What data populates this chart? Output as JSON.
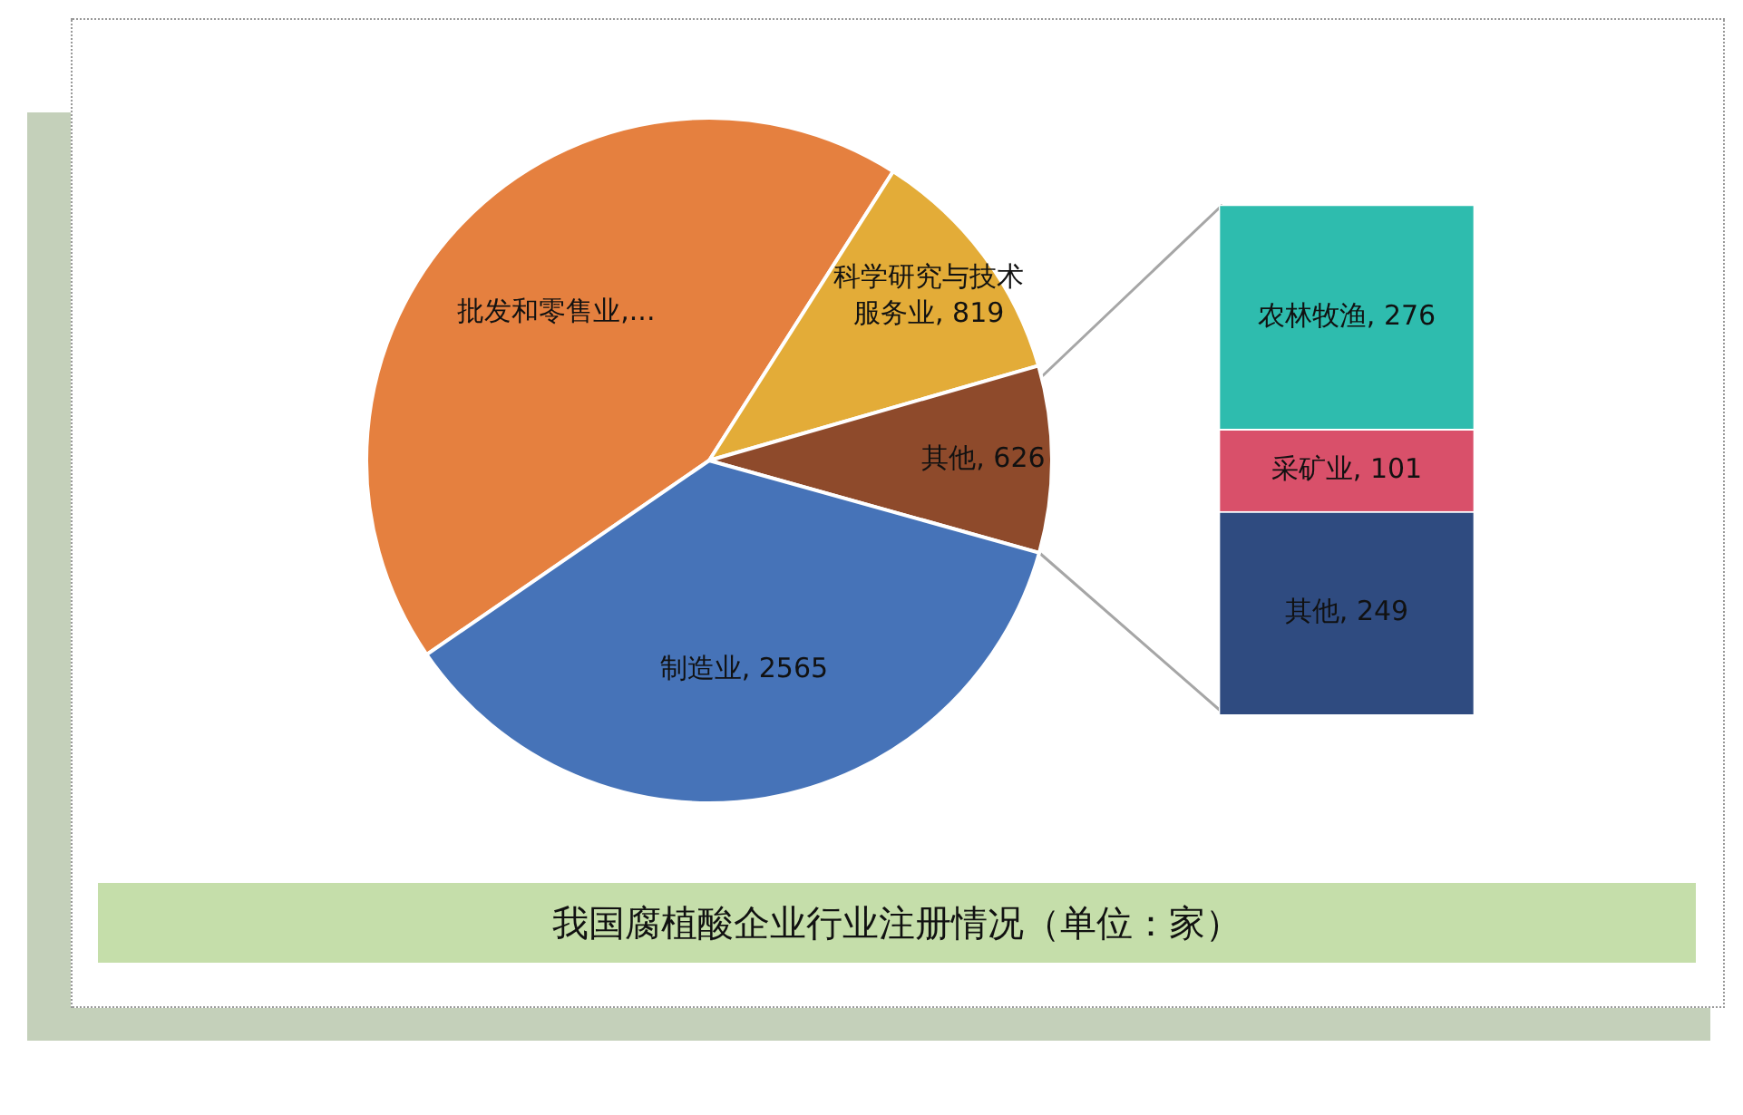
{
  "chart_data": [
    {
      "type": "pie",
      "title": "我国腐植酸企业行业注册情况（单位：家）",
      "categories": [
        "批发和零售业,...",
        "科学研究与技术服务业",
        "其他",
        "制造业"
      ],
      "values": [
        3100,
        819,
        626,
        2565
      ],
      "colors": [
        "#e5803f",
        "#e3ac38",
        "#8e4a2b",
        "#4673b8"
      ],
      "value_labels": [
        null,
        "819",
        "626",
        "2565"
      ]
    },
    {
      "type": "bar",
      "stacked": true,
      "categories": [
        null
      ],
      "data_labels": true,
      "series": [
        {
          "name": "其他,",
          "color": "#2f4b80",
          "values": [
            249
          ]
        },
        {
          "name": "采矿业,",
          "color": "#d9506a",
          "values": [
            101
          ]
        },
        {
          "name": "农林牧渔,",
          "color": "#2ebcae",
          "values": [
            276
          ]
        }
      ]
    }
  ]
}
